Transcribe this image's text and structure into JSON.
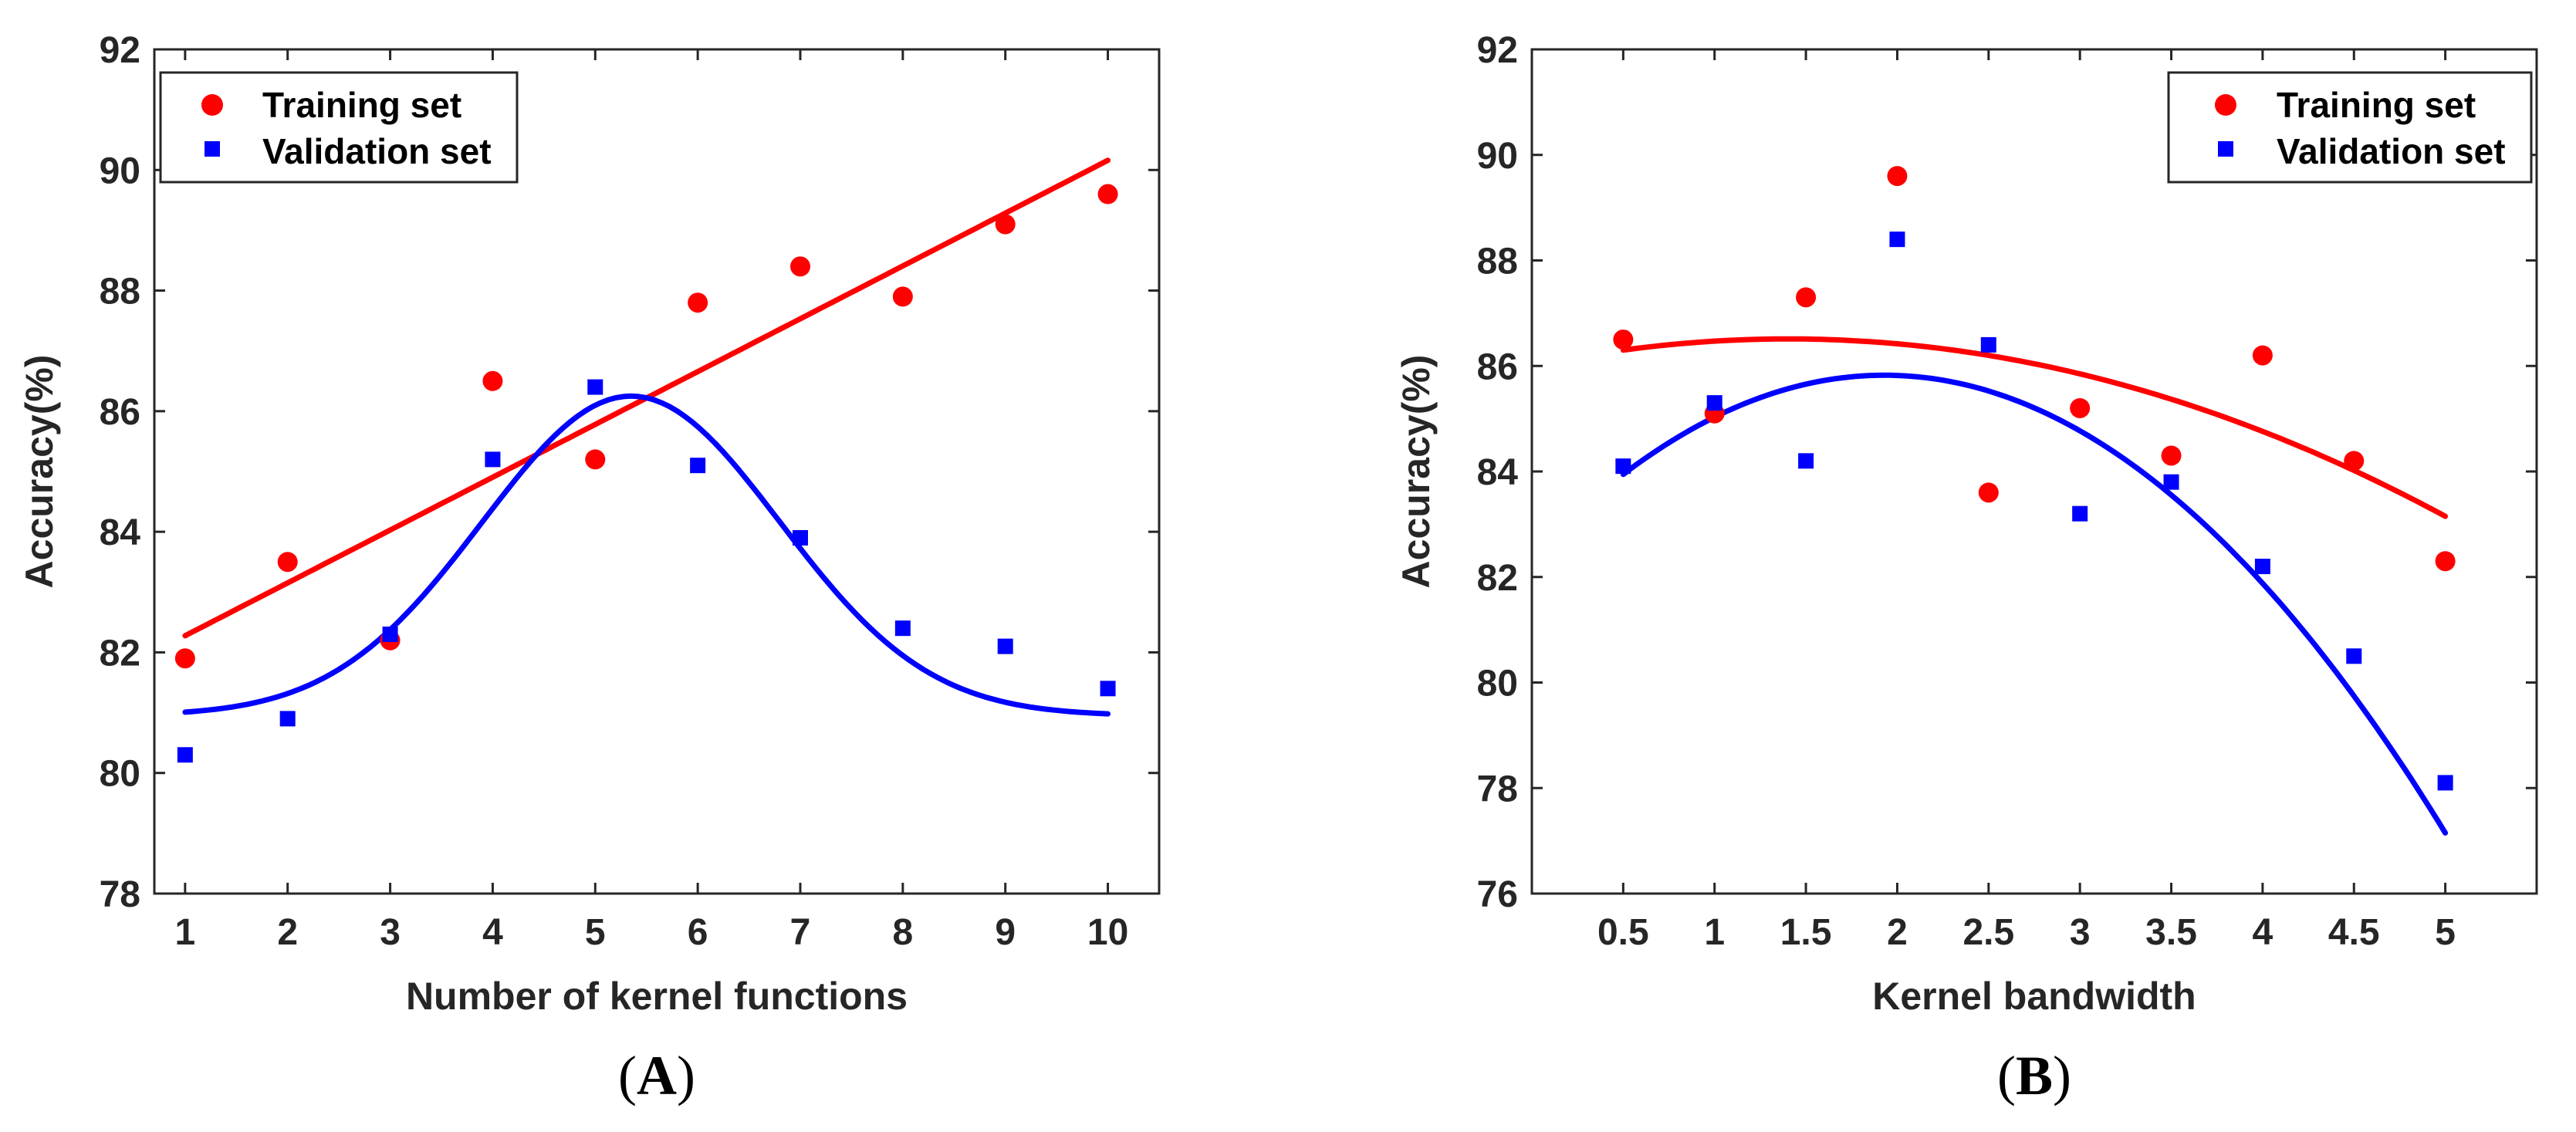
{
  "colors": {
    "training": "#ff0000",
    "validation": "#0000ff",
    "axis": "#262626"
  },
  "chart_data": [
    {
      "type": "scatter",
      "panel": "A",
      "xlabel": "Number of kernel functions",
      "ylabel": "Accuracy(%)",
      "xlim": [
        0.7,
        10.5
      ],
      "ylim": [
        78,
        92
      ],
      "xticks": [
        1,
        2,
        3,
        4,
        5,
        6,
        7,
        8,
        9,
        10
      ],
      "xtick_labels": [
        "1",
        "2",
        "3",
        "4",
        "5",
        "6",
        "7",
        "8",
        "9",
        "10"
      ],
      "yticks": [
        78,
        80,
        82,
        84,
        86,
        88,
        90,
        92
      ],
      "ytick_labels": [
        "78",
        "80",
        "82",
        "84",
        "86",
        "88",
        "90",
        "92"
      ],
      "legend_position": "top-left",
      "series": [
        {
          "name": "Training set",
          "marker": "circle",
          "x": [
            1,
            2,
            3,
            4,
            5,
            6,
            7,
            8,
            9,
            10
          ],
          "values": [
            81.9,
            83.5,
            82.2,
            86.5,
            85.2,
            87.8,
            88.4,
            87.9,
            89.1,
            89.6
          ],
          "fit": {
            "kind": "linear",
            "slope": 0.876,
            "intercept": 81.4,
            "x_range": [
              1,
              10
            ]
          }
        },
        {
          "name": "Validation set",
          "marker": "square",
          "x": [
            1,
            2,
            3,
            4,
            5,
            6,
            7,
            8,
            9,
            10
          ],
          "values": [
            80.3,
            80.9,
            82.3,
            85.2,
            86.4,
            85.1,
            83.9,
            82.4,
            82.1,
            81.4
          ],
          "fit": {
            "kind": "gaussian",
            "baseline": 80.95,
            "amplitude": 5.3,
            "center": 5.35,
            "sigma": 1.45,
            "x_range": [
              1,
              10
            ]
          }
        }
      ]
    },
    {
      "type": "scatter",
      "panel": "B",
      "xlabel": "Kernel bandwidth",
      "ylabel": "Accuracy(%)",
      "xlim": [
        0,
        5.5
      ],
      "ylim": [
        76,
        92
      ],
      "xticks": [
        0.5,
        1,
        1.5,
        2,
        2.5,
        3,
        3.5,
        4,
        4.5,
        5
      ],
      "xtick_labels": [
        "0.5",
        "1",
        "1.5",
        "2",
        "2.5",
        "3",
        "3.5",
        "4",
        "4.5",
        "5"
      ],
      "yticks": [
        76,
        78,
        80,
        82,
        84,
        86,
        88,
        90,
        92
      ],
      "ytick_labels": [
        "76",
        "78",
        "80",
        "82",
        "84",
        "86",
        "88",
        "90",
        "92"
      ],
      "legend_position": "top-right",
      "series": [
        {
          "name": "Training set",
          "marker": "circle",
          "x": [
            0.5,
            1,
            1.5,
            2,
            2.5,
            3,
            3.5,
            4,
            4.5,
            5
          ],
          "values": [
            86.5,
            85.1,
            87.3,
            89.6,
            83.6,
            85.2,
            84.3,
            86.2,
            84.2,
            82.3
          ],
          "fit": {
            "kind": "poly2",
            "coeffs": [
              86.0,
              0.73,
              -0.26
            ],
            "x_range": [
              0.5,
              5
            ]
          }
        },
        {
          "name": "Validation set",
          "marker": "square",
          "x": [
            0.5,
            1,
            1.5,
            2,
            2.5,
            3,
            3.5,
            4,
            4.5,
            5
          ],
          "values": [
            84.1,
            85.3,
            84.2,
            88.4,
            86.4,
            83.2,
            83.8,
            82.2,
            80.5,
            78.1
          ],
          "fit": {
            "kind": "poly2",
            "coeffs": [
              82.4,
              3.55,
              -0.92
            ],
            "x_range": [
              0.5,
              5
            ]
          }
        }
      ]
    }
  ],
  "panel_labels": [
    "A",
    "B"
  ]
}
